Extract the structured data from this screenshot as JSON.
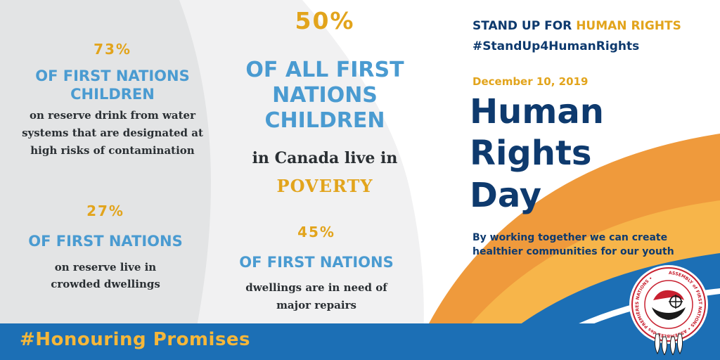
{
  "stats": [
    {
      "percent": "73%",
      "headline": "OF FIRST NATIONS CHILDREN",
      "detail": "on reserve drink from water systems that are designated at high risks of contamination"
    },
    {
      "percent": "27%",
      "headline": "OF FIRST NATIONS",
      "detail": "on reserve live in crowded dwellings"
    },
    {
      "percent": "50%",
      "headline": "OF ALL FIRST NATIONS CHILDREN",
      "detail": "in Canada live in",
      "highlight": "POVERTY"
    },
    {
      "percent": "45%",
      "headline": "OF FIRST NATIONS",
      "detail": "dwellings are in need of major repairs"
    }
  ],
  "campaign": {
    "stand_up_prefix": "STAND UP FOR ",
    "stand_up_highlight": "HUMAN RIGHTS",
    "hashtag": "#StandUp4HumanRights",
    "date": "December 10, 2019",
    "title_lines": [
      "Human",
      "Rights",
      "Day"
    ],
    "tagline": "By working together we can create healthier communities for our youth"
  },
  "footer": {
    "hashtag": "#Honouring Promises"
  },
  "logo": {
    "ring_text": "ASSEMBLY of FIRST NATIONS • ASSEMBLÉE des PREMIÈRES NATIONS •"
  },
  "colors": {
    "navy": "#0e3a6e",
    "gold": "#e2a41c",
    "blue": "#4a9bd1",
    "orange": "#ef9a3c",
    "bar_blue": "#1c6fb5"
  }
}
